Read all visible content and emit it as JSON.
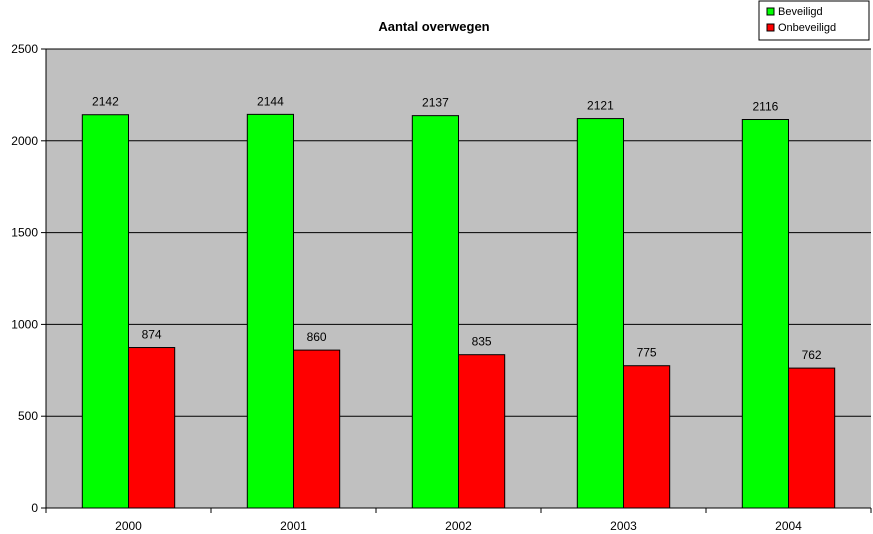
{
  "chart_data": {
    "type": "bar",
    "title": "Aantal overwegen",
    "categories": [
      "2000",
      "2001",
      "2002",
      "2003",
      "2004"
    ],
    "series": [
      {
        "name": "Beveiligd",
        "values": [
          2142,
          2144,
          2137,
          2121,
          2116
        ],
        "color": "#00ff00"
      },
      {
        "name": "Onbeveiligd",
        "values": [
          874,
          860,
          835,
          775,
          762
        ],
        "color": "#ff0000"
      }
    ],
    "ylim": [
      0,
      2500
    ],
    "yticks": [
      0,
      500,
      1000,
      1500,
      2000,
      2500
    ],
    "grid": true,
    "plot_background": "#c0c0c0",
    "legend_position": "top-right"
  }
}
